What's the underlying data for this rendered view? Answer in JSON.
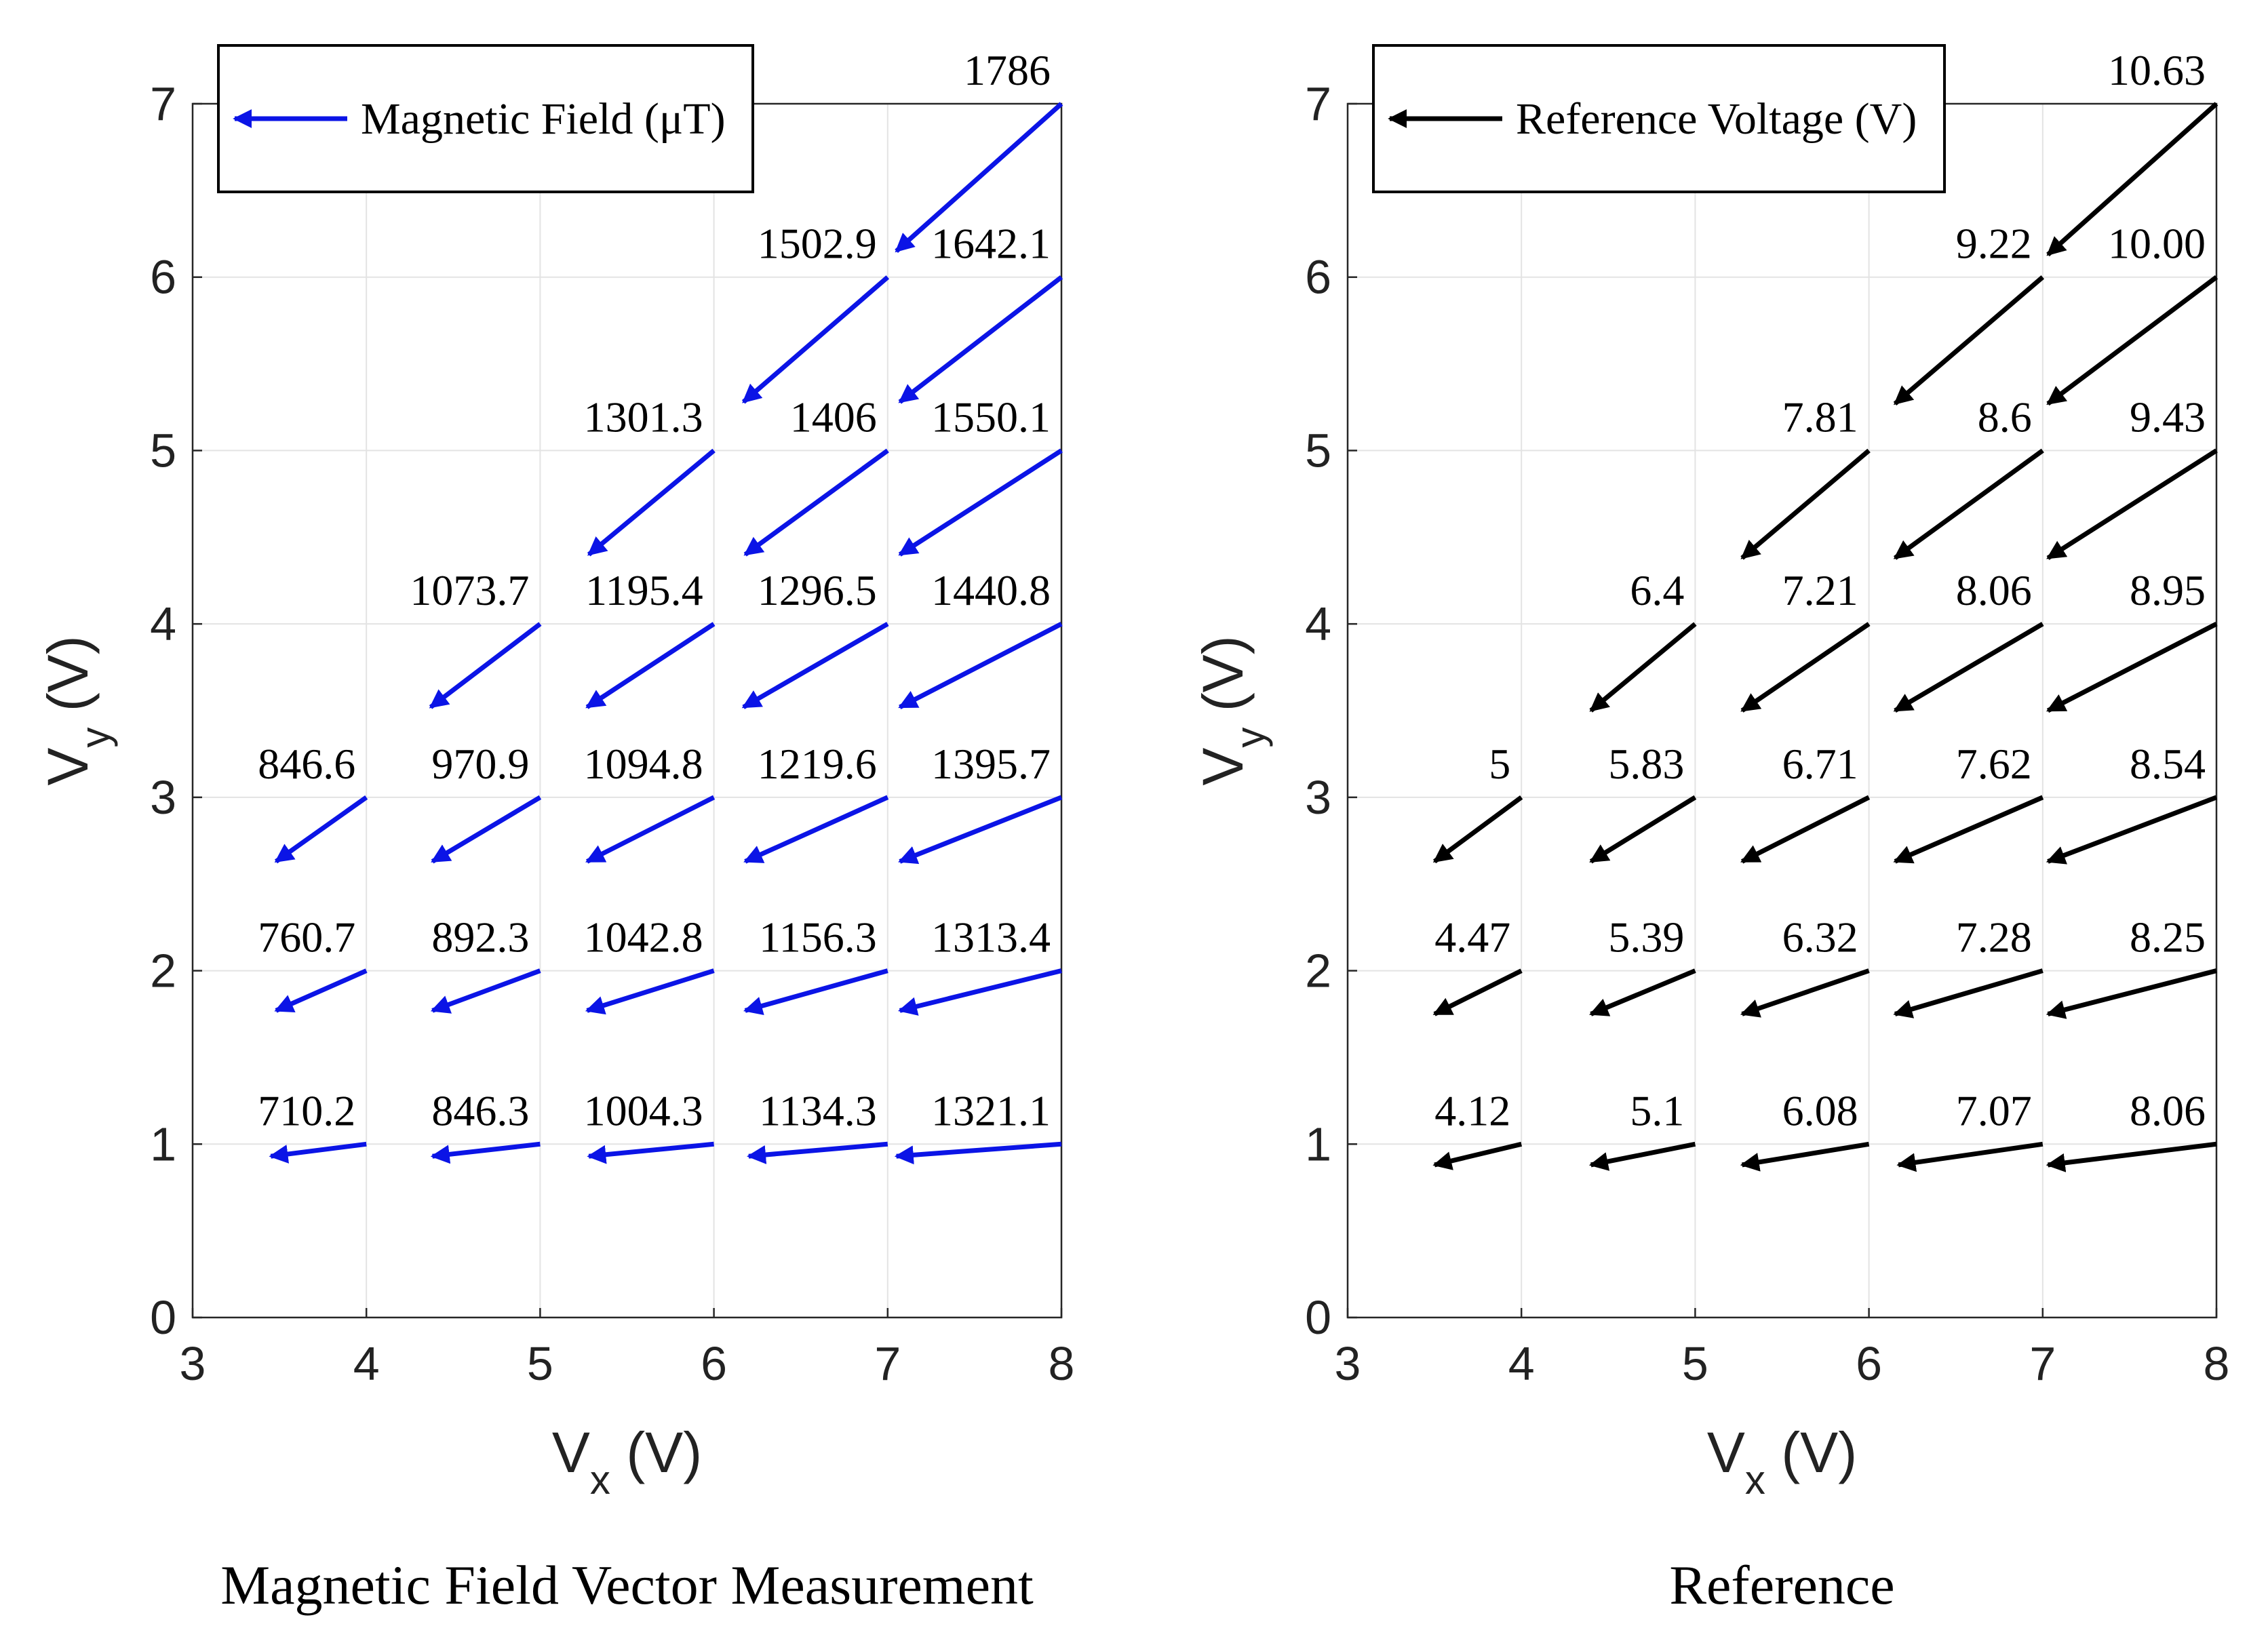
{
  "chart_data": [
    {
      "type": "quiver",
      "title": "",
      "caption": "Magnetic Field Vector Measurement",
      "xlabel": "V",
      "xlabel_sub": "x",
      "xlabel_unit": " (V)",
      "ylabel": "V",
      "ylabel_sub": "y",
      "ylabel_unit": " (V)",
      "xlim": [
        3,
        8
      ],
      "ylim": [
        0,
        7
      ],
      "xticks": [
        "3",
        "4",
        "5",
        "6",
        "7",
        "8"
      ],
      "yticks": [
        "0",
        "1",
        "2",
        "3",
        "4",
        "5",
        "6",
        "7"
      ],
      "grid": true,
      "legend": {
        "label": "Magnetic Field (μT)",
        "position": "top-left"
      },
      "color": "#0b14e6",
      "vectors": [
        {
          "x": 4,
          "y": 1,
          "dx": -0.55,
          "dy": -0.07,
          "label": "710.2"
        },
        {
          "x": 5,
          "y": 1,
          "dx": -0.62,
          "dy": -0.07,
          "label": "846.3"
        },
        {
          "x": 6,
          "y": 1,
          "dx": -0.72,
          "dy": -0.07,
          "label": "1004.3"
        },
        {
          "x": 7,
          "y": 1,
          "dx": -0.8,
          "dy": -0.07,
          "label": "1134.3"
        },
        {
          "x": 8,
          "y": 1,
          "dx": -0.95,
          "dy": -0.07,
          "label": "1321.1"
        },
        {
          "x": 4,
          "y": 2,
          "dx": -0.52,
          "dy": -0.23,
          "label": "760.7"
        },
        {
          "x": 5,
          "y": 2,
          "dx": -0.62,
          "dy": -0.23,
          "label": "892.3"
        },
        {
          "x": 6,
          "y": 2,
          "dx": -0.73,
          "dy": -0.23,
          "label": "1042.8"
        },
        {
          "x": 7,
          "y": 2,
          "dx": -0.82,
          "dy": -0.23,
          "label": "1156.3"
        },
        {
          "x": 8,
          "y": 2,
          "dx": -0.93,
          "dy": -0.23,
          "label": "1313.4"
        },
        {
          "x": 4,
          "y": 3,
          "dx": -0.52,
          "dy": -0.37,
          "label": "846.6"
        },
        {
          "x": 5,
          "y": 3,
          "dx": -0.62,
          "dy": -0.37,
          "label": "970.9"
        },
        {
          "x": 6,
          "y": 3,
          "dx": -0.73,
          "dy": -0.37,
          "label": "1094.8"
        },
        {
          "x": 7,
          "y": 3,
          "dx": -0.82,
          "dy": -0.37,
          "label": "1219.6"
        },
        {
          "x": 8,
          "y": 3,
          "dx": -0.93,
          "dy": -0.37,
          "label": "1395.7"
        },
        {
          "x": 5,
          "y": 4,
          "dx": -0.63,
          "dy": -0.48,
          "label": "1073.7"
        },
        {
          "x": 6,
          "y": 4,
          "dx": -0.73,
          "dy": -0.48,
          "label": "1195.4"
        },
        {
          "x": 7,
          "y": 4,
          "dx": -0.83,
          "dy": -0.48,
          "label": "1296.5"
        },
        {
          "x": 8,
          "y": 4,
          "dx": -0.93,
          "dy": -0.48,
          "label": "1440.8"
        },
        {
          "x": 6,
          "y": 5,
          "dx": -0.72,
          "dy": -0.6,
          "label": "1301.3"
        },
        {
          "x": 7,
          "y": 5,
          "dx": -0.82,
          "dy": -0.6,
          "label": "1406"
        },
        {
          "x": 8,
          "y": 5,
          "dx": -0.93,
          "dy": -0.6,
          "label": "1550.1"
        },
        {
          "x": 7,
          "y": 6,
          "dx": -0.83,
          "dy": -0.72,
          "label": "1502.9"
        },
        {
          "x": 8,
          "y": 6,
          "dx": -0.93,
          "dy": -0.72,
          "label": "1642.1"
        },
        {
          "x": 8,
          "y": 7,
          "dx": -0.95,
          "dy": -0.85,
          "label": "1786"
        }
      ]
    },
    {
      "type": "quiver",
      "title": "",
      "caption": "Reference",
      "xlabel": "V",
      "xlabel_sub": "x",
      "xlabel_unit": " (V)",
      "ylabel": "V",
      "ylabel_sub": "y",
      "ylabel_unit": " (V)",
      "xlim": [
        3,
        8
      ],
      "ylim": [
        0,
        7
      ],
      "xticks": [
        "3",
        "4",
        "5",
        "6",
        "7",
        "8"
      ],
      "yticks": [
        "0",
        "1",
        "2",
        "3",
        "4",
        "5",
        "6",
        "7"
      ],
      "grid": true,
      "legend": {
        "label": "Reference Voltage (V)",
        "position": "top-left"
      },
      "color": "#000000",
      "vectors": [
        {
          "x": 4,
          "y": 1,
          "dx": -0.5,
          "dy": -0.12,
          "label": "4.12"
        },
        {
          "x": 5,
          "y": 1,
          "dx": -0.6,
          "dy": -0.12,
          "label": "5.1"
        },
        {
          "x": 6,
          "y": 1,
          "dx": -0.73,
          "dy": -0.12,
          "label": "6.08"
        },
        {
          "x": 7,
          "y": 1,
          "dx": -0.83,
          "dy": -0.12,
          "label": "7.07"
        },
        {
          "x": 8,
          "y": 1,
          "dx": -0.97,
          "dy": -0.12,
          "label": "8.06"
        },
        {
          "x": 4,
          "y": 2,
          "dx": -0.5,
          "dy": -0.25,
          "label": "4.47"
        },
        {
          "x": 5,
          "y": 2,
          "dx": -0.6,
          "dy": -0.25,
          "label": "5.39"
        },
        {
          "x": 6,
          "y": 2,
          "dx": -0.73,
          "dy": -0.25,
          "label": "6.32"
        },
        {
          "x": 7,
          "y": 2,
          "dx": -0.85,
          "dy": -0.25,
          "label": "7.28"
        },
        {
          "x": 8,
          "y": 2,
          "dx": -0.97,
          "dy": -0.25,
          "label": "8.25"
        },
        {
          "x": 4,
          "y": 3,
          "dx": -0.5,
          "dy": -0.37,
          "label": "5"
        },
        {
          "x": 5,
          "y": 3,
          "dx": -0.6,
          "dy": -0.37,
          "label": "5.83"
        },
        {
          "x": 6,
          "y": 3,
          "dx": -0.73,
          "dy": -0.37,
          "label": "6.71"
        },
        {
          "x": 7,
          "y": 3,
          "dx": -0.85,
          "dy": -0.37,
          "label": "7.62"
        },
        {
          "x": 8,
          "y": 3,
          "dx": -0.97,
          "dy": -0.37,
          "label": "8.54"
        },
        {
          "x": 5,
          "y": 4,
          "dx": -0.6,
          "dy": -0.5,
          "label": "6.4"
        },
        {
          "x": 6,
          "y": 4,
          "dx": -0.73,
          "dy": -0.5,
          "label": "7.21"
        },
        {
          "x": 7,
          "y": 4,
          "dx": -0.85,
          "dy": -0.5,
          "label": "8.06"
        },
        {
          "x": 8,
          "y": 4,
          "dx": -0.97,
          "dy": -0.5,
          "label": "8.95"
        },
        {
          "x": 6,
          "y": 5,
          "dx": -0.73,
          "dy": -0.62,
          "label": "7.81"
        },
        {
          "x": 7,
          "y": 5,
          "dx": -0.85,
          "dy": -0.62,
          "label": "8.6"
        },
        {
          "x": 8,
          "y": 5,
          "dx": -0.97,
          "dy": -0.62,
          "label": "9.43"
        },
        {
          "x": 7,
          "y": 6,
          "dx": -0.85,
          "dy": -0.73,
          "label": "9.22"
        },
        {
          "x": 8,
          "y": 6,
          "dx": -0.97,
          "dy": -0.73,
          "label": "10.00"
        },
        {
          "x": 8,
          "y": 7,
          "dx": -0.97,
          "dy": -0.87,
          "label": "10.63"
        }
      ]
    }
  ]
}
